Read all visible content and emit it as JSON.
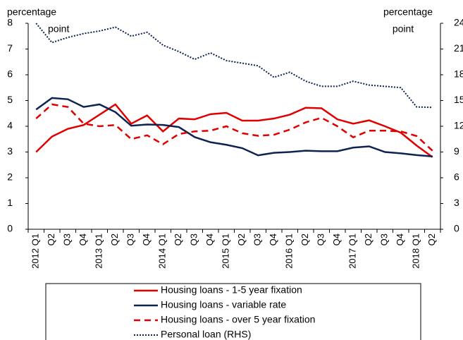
{
  "chart_data": {
    "type": "line",
    "y_axis_label": [
      "percentage",
      "point"
    ],
    "y2_axis_label": [
      "percentage",
      "point"
    ],
    "categories": [
      "2012 Q1",
      "Q2",
      "Q3",
      "Q4",
      "2013 Q1",
      "Q2",
      "Q3",
      "Q4",
      "2014 Q1",
      "Q2",
      "Q3",
      "Q4",
      "2015 Q1",
      "Q2",
      "Q3",
      "Q4",
      "2016 Q1",
      "Q2",
      "Q3",
      "Q4",
      "2017 Q1",
      "Q2",
      "Q3",
      "Q4",
      "2018 Q1",
      "Q2"
    ],
    "ylim": [
      0,
      8
    ],
    "yticks": [
      0,
      1,
      2,
      3,
      4,
      5,
      6,
      7,
      8
    ],
    "y2lim": [
      0,
      24
    ],
    "y2ticks": [
      0,
      3,
      6,
      9,
      12,
      15,
      18,
      21,
      24
    ],
    "series": [
      {
        "name": "Housing loans - 1-5 year fixation",
        "color": "#e00000",
        "style": "solid",
        "values": [
          3.0,
          3.6,
          3.9,
          4.05,
          4.45,
          4.85,
          4.1,
          4.42,
          3.8,
          4.3,
          4.27,
          4.47,
          4.52,
          4.22,
          4.22,
          4.3,
          4.45,
          4.72,
          4.7,
          4.27,
          4.1,
          4.23,
          4.0,
          3.75,
          3.25,
          2.8
        ]
      },
      {
        "name": "Housing loans - variable rate",
        "color": "#0d2350",
        "style": "solid",
        "values": [
          4.65,
          5.1,
          5.05,
          4.75,
          4.85,
          4.55,
          4.02,
          4.07,
          4.05,
          3.97,
          3.58,
          3.38,
          3.28,
          3.15,
          2.87,
          2.97,
          3.0,
          3.05,
          3.03,
          3.03,
          3.17,
          3.22,
          3.0,
          2.95,
          2.88,
          2.83
        ]
      },
      {
        "name": "Housing loans - over 5 year fixation",
        "color": "#e00000",
        "style": "dashed",
        "values": [
          4.3,
          4.85,
          4.75,
          4.1,
          4.0,
          4.05,
          3.5,
          3.65,
          3.3,
          3.7,
          3.8,
          3.83,
          4.0,
          3.73,
          3.63,
          3.67,
          3.87,
          4.15,
          4.33,
          4.0,
          3.57,
          3.83,
          3.83,
          3.8,
          3.62,
          3.05
        ]
      },
      {
        "name": "Personal loan (RHS)",
        "color": "#0d2350",
        "style": "dotted",
        "axis": "y2",
        "values": [
          24,
          21.75,
          22.35,
          22.8,
          23.1,
          23.55,
          22.5,
          22.95,
          21.45,
          20.7,
          19.8,
          20.55,
          19.65,
          19.35,
          19.05,
          17.7,
          18.3,
          17.25,
          16.65,
          16.65,
          17.25,
          16.8,
          16.65,
          16.5,
          14.25,
          14.2
        ]
      }
    ]
  }
}
